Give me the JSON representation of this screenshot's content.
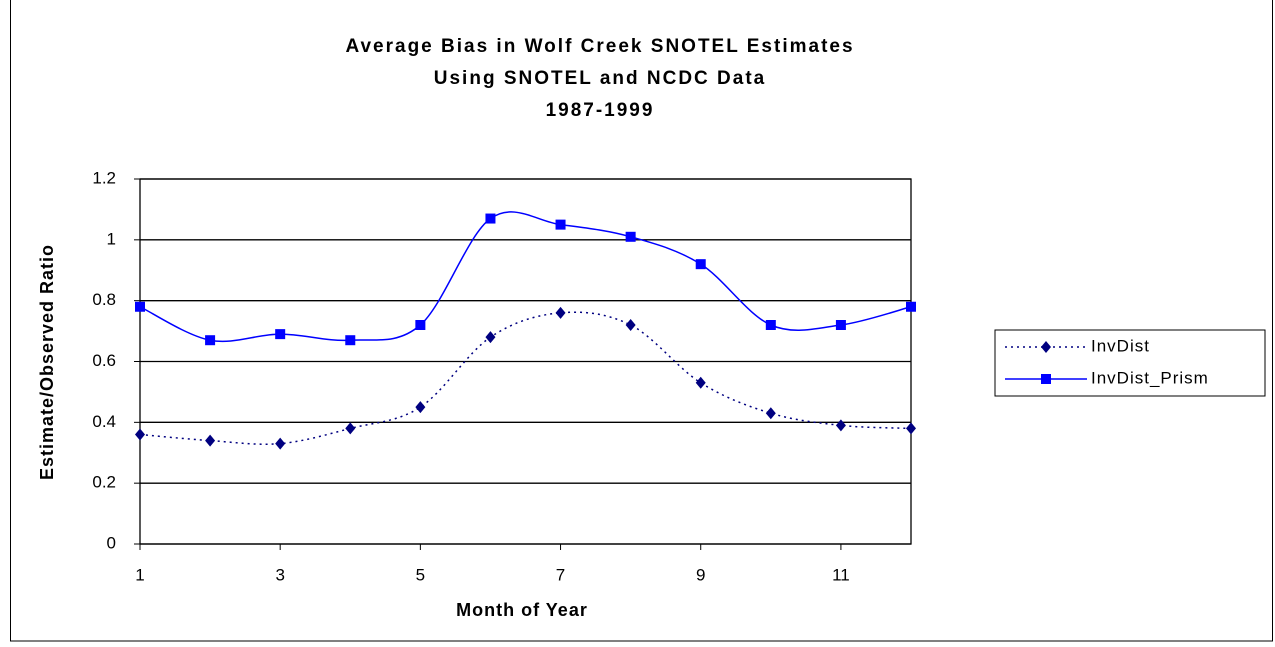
{
  "chart_data": {
    "type": "line",
    "title": [
      "Average Bias in Wolf Creek SNOTEL Estimates",
      "Using SNOTEL and NCDC Data",
      "1987-1999"
    ],
    "x_label": "Month of Year",
    "y_label": "Estimate/Observed Ratio",
    "x": [
      1,
      2,
      3,
      4,
      5,
      6,
      7,
      8,
      9,
      10,
      11,
      12
    ],
    "xlim": [
      1,
      12
    ],
    "xticks": [
      1,
      3,
      5,
      7,
      9,
      11
    ],
    "ylim": [
      0,
      1.2
    ],
    "yticks": [
      0,
      0.2,
      0.4,
      0.6,
      0.8,
      1,
      1.2
    ],
    "grid": true,
    "smooth": true,
    "legend": "right",
    "series": [
      {
        "name": "InvDist",
        "color": "#000080",
        "line_style": "dotted",
        "marker": "diamond",
        "values": [
          0.36,
          0.34,
          0.33,
          0.38,
          0.45,
          0.68,
          0.76,
          0.72,
          0.53,
          0.43,
          0.39,
          0.38
        ]
      },
      {
        "name": "InvDist_Prism",
        "color": "#0000ff",
        "line_style": "solid",
        "marker": "square",
        "values": [
          0.78,
          0.67,
          0.69,
          0.67,
          0.72,
          1.07,
          1.05,
          1.01,
          0.92,
          0.72,
          0.72,
          0.78
        ]
      }
    ]
  }
}
